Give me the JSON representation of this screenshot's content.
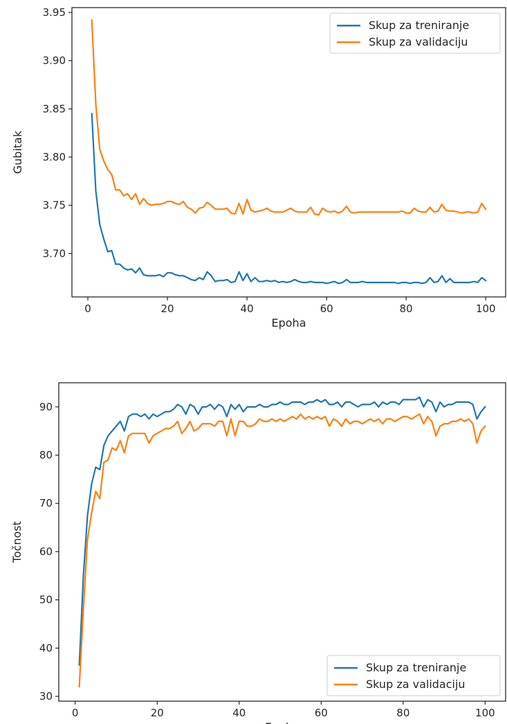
{
  "chart_data": [
    {
      "type": "line",
      "xlabel": "Epoha",
      "ylabel": "Gubitak",
      "xlim": [
        -4,
        105
      ],
      "ylim": [
        3.655,
        3.955
      ],
      "xticks": [
        0,
        20,
        40,
        60,
        80,
        100
      ],
      "yticks": [
        3.7,
        3.75,
        3.8,
        3.85,
        3.9,
        3.95
      ],
      "ytick_format": 2,
      "legend_position": "top-right",
      "grid": false,
      "x": [
        1,
        2,
        3,
        4,
        5,
        6,
        7,
        8,
        9,
        10,
        11,
        12,
        13,
        14,
        15,
        16,
        17,
        18,
        19,
        20,
        21,
        22,
        23,
        24,
        25,
        26,
        27,
        28,
        29,
        30,
        31,
        32,
        33,
        34,
        35,
        36,
        37,
        38,
        39,
        40,
        41,
        42,
        43,
        44,
        45,
        46,
        47,
        48,
        49,
        50,
        51,
        52,
        53,
        54,
        55,
        56,
        57,
        58,
        59,
        60,
        61,
        62,
        63,
        64,
        65,
        66,
        67,
        68,
        69,
        70,
        71,
        72,
        73,
        74,
        75,
        76,
        77,
        78,
        79,
        80,
        81,
        82,
        83,
        84,
        85,
        86,
        87,
        88,
        89,
        90,
        91,
        92,
        93,
        94,
        95,
        96,
        97,
        98,
        99,
        100
      ],
      "series": [
        {
          "name": "Skup za treniranje",
          "color": "#1f77b4",
          "values": [
            3.845,
            3.765,
            3.73,
            3.715,
            3.702,
            3.703,
            3.689,
            3.689,
            3.685,
            3.683,
            3.684,
            3.68,
            3.685,
            3.678,
            3.677,
            3.677,
            3.677,
            3.678,
            3.676,
            3.68,
            3.68,
            3.678,
            3.677,
            3.677,
            3.675,
            3.673,
            3.672,
            3.675,
            3.673,
            3.681,
            3.677,
            3.671,
            3.672,
            3.672,
            3.673,
            3.67,
            3.671,
            3.681,
            3.672,
            3.679,
            3.671,
            3.675,
            3.671,
            3.671,
            3.672,
            3.671,
            3.672,
            3.67,
            3.671,
            3.67,
            3.671,
            3.673,
            3.671,
            3.67,
            3.67,
            3.671,
            3.67,
            3.67,
            3.67,
            3.669,
            3.67,
            3.671,
            3.669,
            3.67,
            3.673,
            3.67,
            3.67,
            3.67,
            3.671,
            3.67,
            3.67,
            3.67,
            3.67,
            3.67,
            3.67,
            3.67,
            3.67,
            3.669,
            3.67,
            3.67,
            3.669,
            3.67,
            3.67,
            3.669,
            3.67,
            3.675,
            3.67,
            3.671,
            3.677,
            3.67,
            3.674,
            3.67,
            3.67,
            3.67,
            3.67,
            3.67,
            3.671,
            3.67,
            3.675,
            3.672
          ]
        },
        {
          "name": "Skup za validaciju",
          "color": "#ff7f0e",
          "values": [
            3.942,
            3.855,
            3.808,
            3.796,
            3.787,
            3.782,
            3.766,
            3.766,
            3.76,
            3.762,
            3.756,
            3.762,
            3.751,
            3.757,
            3.752,
            3.75,
            3.751,
            3.751,
            3.752,
            3.754,
            3.754,
            3.752,
            3.751,
            3.754,
            3.748,
            3.746,
            3.742,
            3.747,
            3.748,
            3.753,
            3.75,
            3.746,
            3.746,
            3.746,
            3.747,
            3.742,
            3.741,
            3.752,
            3.741,
            3.756,
            3.745,
            3.743,
            3.744,
            3.745,
            3.747,
            3.744,
            3.743,
            3.743,
            3.743,
            3.745,
            3.747,
            3.744,
            3.743,
            3.743,
            3.743,
            3.748,
            3.741,
            3.74,
            3.747,
            3.744,
            3.743,
            3.744,
            3.742,
            3.744,
            3.749,
            3.743,
            3.742,
            3.743,
            3.743,
            3.743,
            3.743,
            3.743,
            3.743,
            3.743,
            3.743,
            3.743,
            3.743,
            3.743,
            3.744,
            3.742,
            3.742,
            3.747,
            3.744,
            3.743,
            3.743,
            3.748,
            3.743,
            3.744,
            3.751,
            3.745,
            3.744,
            3.744,
            3.743,
            3.742,
            3.743,
            3.743,
            3.742,
            3.743,
            3.752,
            3.746
          ]
        }
      ]
    },
    {
      "type": "line",
      "xlabel": "Epoha",
      "ylabel": "Točnost",
      "xlim": [
        -4,
        105
      ],
      "ylim": [
        29,
        95
      ],
      "xticks": [
        0,
        20,
        40,
        60,
        80,
        100
      ],
      "yticks": [
        30,
        40,
        50,
        60,
        70,
        80,
        90
      ],
      "ytick_format": 0,
      "legend_position": "lower-right",
      "grid": false,
      "x": [
        1,
        2,
        3,
        4,
        5,
        6,
        7,
        8,
        9,
        10,
        11,
        12,
        13,
        14,
        15,
        16,
        17,
        18,
        19,
        20,
        21,
        22,
        23,
        24,
        25,
        26,
        27,
        28,
        29,
        30,
        31,
        32,
        33,
        34,
        35,
        36,
        37,
        38,
        39,
        40,
        41,
        42,
        43,
        44,
        45,
        46,
        47,
        48,
        49,
        50,
        51,
        52,
        53,
        54,
        55,
        56,
        57,
        58,
        59,
        60,
        61,
        62,
        63,
        64,
        65,
        66,
        67,
        68,
        69,
        70,
        71,
        72,
        73,
        74,
        75,
        76,
        77,
        78,
        79,
        80,
        81,
        82,
        83,
        84,
        85,
        86,
        87,
        88,
        89,
        90,
        91,
        92,
        93,
        94,
        95,
        96,
        97,
        98,
        99,
        100
      ],
      "series": [
        {
          "name": "Skup za treniranje",
          "color": "#1f77b4",
          "values": [
            36.5,
            55.0,
            67.5,
            74.0,
            77.5,
            77.0,
            82.0,
            84.0,
            85.0,
            86.0,
            87.0,
            85.0,
            88.0,
            88.5,
            88.5,
            88.0,
            88.5,
            87.5,
            88.5,
            88.0,
            88.5,
            89.0,
            89.0,
            89.5,
            90.5,
            90.0,
            88.5,
            90.5,
            90.0,
            88.5,
            90.0,
            90.0,
            90.5,
            89.5,
            90.5,
            90.0,
            88.0,
            90.5,
            89.5,
            90.5,
            89.0,
            90.0,
            90.0,
            90.0,
            90.5,
            90.0,
            90.0,
            90.5,
            90.5,
            91.0,
            90.5,
            90.5,
            91.0,
            91.0,
            91.0,
            90.5,
            91.0,
            91.0,
            91.5,
            91.0,
            91.5,
            90.5,
            90.5,
            91.0,
            90.0,
            91.0,
            91.0,
            90.5,
            90.0,
            90.5,
            90.5,
            90.5,
            91.0,
            90.0,
            91.0,
            90.5,
            91.0,
            91.0,
            90.5,
            91.5,
            91.5,
            91.5,
            91.5,
            92.0,
            90.0,
            91.5,
            91.0,
            89.0,
            91.0,
            90.0,
            90.5,
            90.5,
            91.0,
            91.0,
            91.0,
            91.0,
            90.5,
            87.5,
            89.0,
            90.0
          ]
        },
        {
          "name": "Skup za validaciju",
          "color": "#ff7f0e",
          "values": [
            32.0,
            48.0,
            62.5,
            68.0,
            72.5,
            71.0,
            78.5,
            79.0,
            81.5,
            81.0,
            83.0,
            80.5,
            84.0,
            84.5,
            84.5,
            84.5,
            84.5,
            82.5,
            84.0,
            84.5,
            85.0,
            85.5,
            85.5,
            86.0,
            87.0,
            84.5,
            85.5,
            87.0,
            85.0,
            85.5,
            86.5,
            86.5,
            86.5,
            86.0,
            87.0,
            87.0,
            84.0,
            87.5,
            84.0,
            87.0,
            87.0,
            86.0,
            86.0,
            86.5,
            87.5,
            87.0,
            87.0,
            87.5,
            87.0,
            87.5,
            87.0,
            87.5,
            88.0,
            87.5,
            88.5,
            87.5,
            88.0,
            87.5,
            88.0,
            87.5,
            88.0,
            86.0,
            87.5,
            87.0,
            86.0,
            87.5,
            86.5,
            87.0,
            87.0,
            86.5,
            87.0,
            87.5,
            87.0,
            87.5,
            86.5,
            87.5,
            87.5,
            87.0,
            87.5,
            88.0,
            88.0,
            87.5,
            88.0,
            88.5,
            86.5,
            88.0,
            87.0,
            84.0,
            86.0,
            86.5,
            86.5,
            87.0,
            87.0,
            87.5,
            87.0,
            87.5,
            86.5,
            82.5,
            85.0,
            86.0
          ]
        }
      ]
    }
  ]
}
